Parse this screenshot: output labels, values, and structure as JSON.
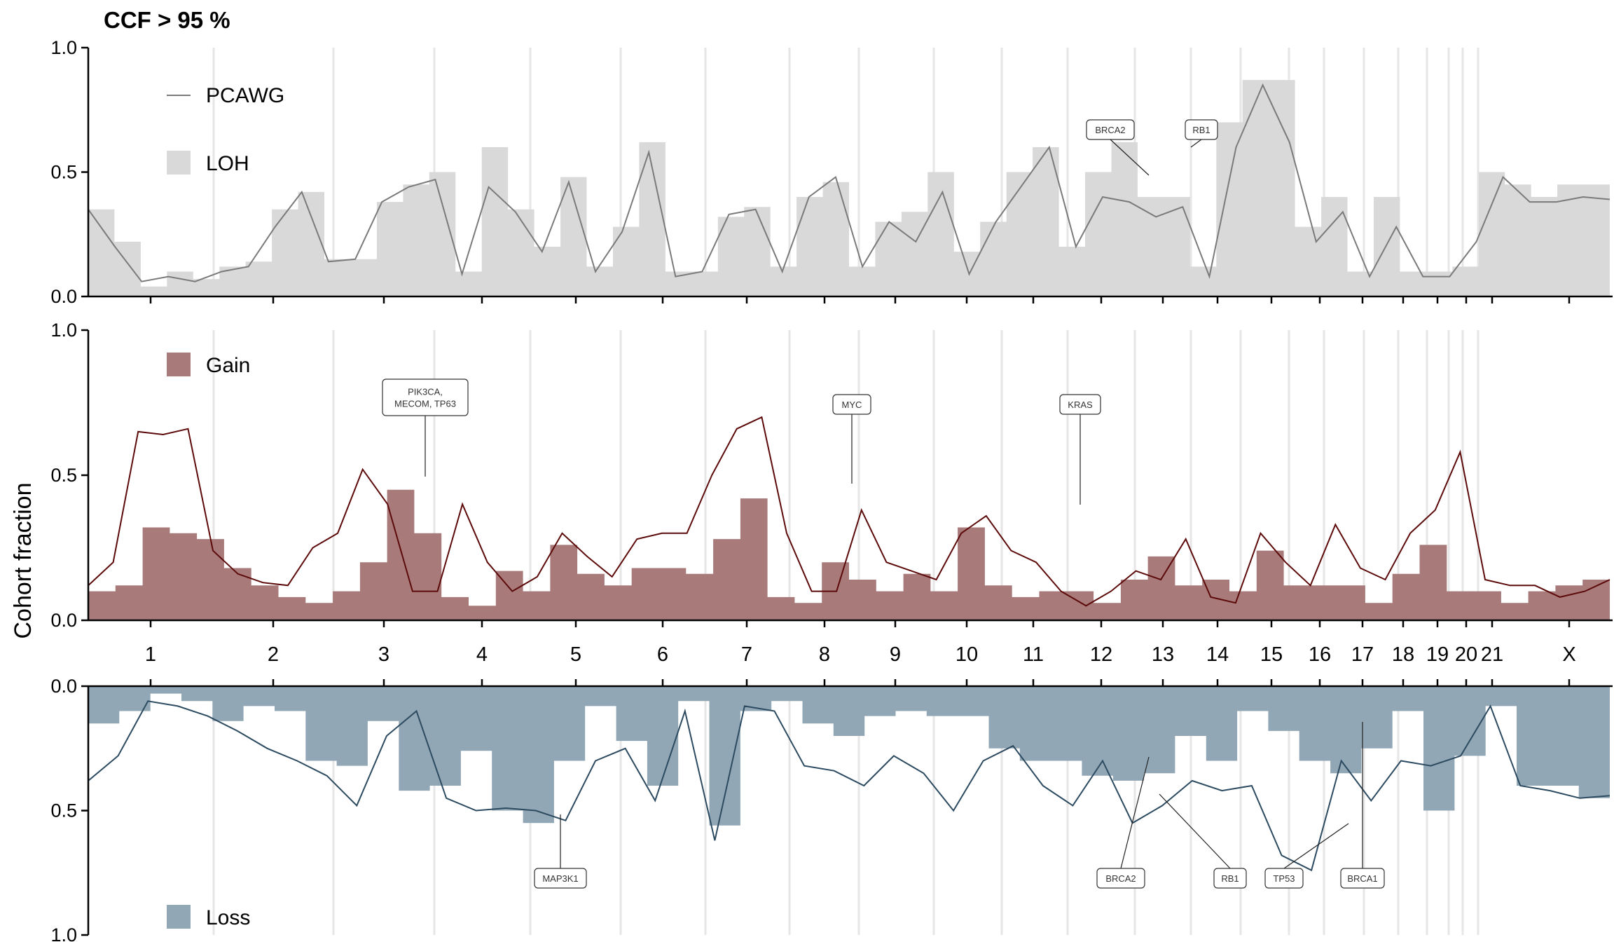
{
  "title": "CCF > 95 %",
  "ylabel": "Cohort fraction",
  "colors": {
    "loh": "#d9d9d9",
    "pcawg": "#7a7a7a",
    "gain_fill": "#a87a7a",
    "gain_line": "#5c0a0a",
    "loss_fill": "#91a7b5",
    "loss_line": "#2c4a60",
    "chrom_line": "#e6e6e6"
  },
  "legend": {
    "pcawg": "PCAWG",
    "loh": "LOH",
    "gain": "Gain",
    "loss": "Loss"
  },
  "chart_data": [
    {
      "panel": "top",
      "type": "area",
      "ylim": [
        0,
        1
      ],
      "yticks": [
        "0.0",
        "0.5",
        "1.0"
      ],
      "series": [
        {
          "name": "LOH",
          "kind": "filled-steps",
          "values": [
            0.35,
            0.22,
            0.04,
            0.1,
            0.07,
            0.12,
            0.14,
            0.35,
            0.42,
            0.15,
            0.15,
            0.38,
            0.45,
            0.5,
            0.1,
            0.6,
            0.35,
            0.2,
            0.48,
            0.12,
            0.28,
            0.62,
            0.1,
            0.1,
            0.32,
            0.36,
            0.12,
            0.4,
            0.46,
            0.12,
            0.3,
            0.34,
            0.5,
            0.18,
            0.3,
            0.5,
            0.6,
            0.2,
            0.5,
            0.62,
            0.4,
            0.4,
            0.12,
            0.7,
            0.87,
            0.87,
            0.28,
            0.4,
            0.1,
            0.4,
            0.1,
            0.1,
            0.12,
            0.5,
            0.45,
            0.4,
            0.45,
            0.45
          ]
        },
        {
          "name": "PCAWG",
          "kind": "line",
          "values": [
            0.35,
            0.2,
            0.06,
            0.08,
            0.06,
            0.1,
            0.12,
            0.28,
            0.42,
            0.14,
            0.15,
            0.38,
            0.44,
            0.47,
            0.09,
            0.44,
            0.34,
            0.18,
            0.46,
            0.1,
            0.26,
            0.58,
            0.08,
            0.1,
            0.33,
            0.35,
            0.1,
            0.4,
            0.48,
            0.12,
            0.3,
            0.22,
            0.42,
            0.09,
            0.3,
            0.45,
            0.6,
            0.2,
            0.4,
            0.38,
            0.32,
            0.36,
            0.08,
            0.6,
            0.85,
            0.62,
            0.22,
            0.34,
            0.08,
            0.28,
            0.08,
            0.08,
            0.22,
            0.48,
            0.38,
            0.38,
            0.4,
            0.39
          ]
        }
      ]
    },
    {
      "panel": "middle",
      "type": "area",
      "ylim": [
        0,
        1
      ],
      "yticks": [
        "0.0",
        "0.5",
        "1.0"
      ],
      "series": [
        {
          "name": "Gain",
          "kind": "filled-steps",
          "values": [
            0.1,
            0.12,
            0.32,
            0.3,
            0.28,
            0.18,
            0.12,
            0.08,
            0.06,
            0.1,
            0.2,
            0.45,
            0.3,
            0.08,
            0.05,
            0.17,
            0.1,
            0.26,
            0.16,
            0.12,
            0.18,
            0.18,
            0.16,
            0.28,
            0.42,
            0.08,
            0.06,
            0.2,
            0.14,
            0.1,
            0.16,
            0.1,
            0.32,
            0.12,
            0.08,
            0.1,
            0.1,
            0.06,
            0.14,
            0.22,
            0.12,
            0.14,
            0.1,
            0.24,
            0.12,
            0.12,
            0.12,
            0.06,
            0.16,
            0.26,
            0.1,
            0.1,
            0.06,
            0.1,
            0.12,
            0.14
          ]
        },
        {
          "name": "PCAWG",
          "kind": "line",
          "values": [
            0.12,
            0.2,
            0.65,
            0.64,
            0.66,
            0.24,
            0.16,
            0.13,
            0.12,
            0.25,
            0.3,
            0.52,
            0.4,
            0.1,
            0.1,
            0.4,
            0.2,
            0.1,
            0.15,
            0.3,
            0.22,
            0.15,
            0.28,
            0.3,
            0.3,
            0.5,
            0.66,
            0.7,
            0.3,
            0.1,
            0.1,
            0.38,
            0.2,
            0.17,
            0.14,
            0.3,
            0.36,
            0.24,
            0.2,
            0.1,
            0.05,
            0.1,
            0.17,
            0.14,
            0.28,
            0.08,
            0.06,
            0.3,
            0.2,
            0.12,
            0.33,
            0.18,
            0.14,
            0.3,
            0.38,
            0.58,
            0.14,
            0.12,
            0.12,
            0.08,
            0.1,
            0.14
          ]
        }
      ]
    },
    {
      "panel": "bottom",
      "type": "area",
      "ylim": [
        0,
        1
      ],
      "yticks": [
        "0.0",
        "0.5",
        "1.0"
      ],
      "series": [
        {
          "name": "Loss",
          "kind": "filled-steps",
          "values": [
            0.15,
            0.1,
            0.03,
            0.06,
            0.14,
            0.08,
            0.1,
            0.3,
            0.32,
            0.14,
            0.42,
            0.4,
            0.26,
            0.5,
            0.55,
            0.3,
            0.08,
            0.22,
            0.4,
            0.06,
            0.56,
            0.1,
            0.06,
            0.15,
            0.2,
            0.12,
            0.1,
            0.12,
            0.12,
            0.25,
            0.3,
            0.3,
            0.36,
            0.38,
            0.35,
            0.2,
            0.3,
            0.1,
            0.18,
            0.3,
            0.35,
            0.25,
            0.1,
            0.5,
            0.28,
            0.08,
            0.4,
            0.4,
            0.45
          ]
        },
        {
          "name": "PCAWG",
          "kind": "line",
          "values": [
            0.38,
            0.28,
            0.06,
            0.08,
            0.12,
            0.18,
            0.25,
            0.3,
            0.36,
            0.48,
            0.2,
            0.1,
            0.45,
            0.5,
            0.49,
            0.5,
            0.54,
            0.3,
            0.25,
            0.46,
            0.1,
            0.62,
            0.08,
            0.1,
            0.32,
            0.34,
            0.4,
            0.28,
            0.35,
            0.5,
            0.3,
            0.24,
            0.4,
            0.48,
            0.3,
            0.55,
            0.48,
            0.38,
            0.42,
            0.4,
            0.68,
            0.74,
            0.3,
            0.46,
            0.3,
            0.32,
            0.28,
            0.08,
            0.4,
            0.42,
            0.45,
            0.44
          ]
        }
      ]
    }
  ],
  "chromosomes": [
    "1",
    "2",
    "3",
    "4",
    "5",
    "6",
    "7",
    "8",
    "9",
    "10",
    "11",
    "12",
    "13",
    "14",
    "15",
    "16",
    "17",
    "18",
    "19",
    "20",
    "21",
    "X"
  ],
  "genes": {
    "top": [
      {
        "label": "BRCA2"
      },
      {
        "label": "RB1"
      }
    ],
    "middle": [
      {
        "label": "PIK3CA,\nMECOM, TP63"
      },
      {
        "label": "MYC"
      },
      {
        "label": "KRAS"
      }
    ],
    "bottom": [
      {
        "label": "MAP3K1"
      },
      {
        "label": "BRCA2"
      },
      {
        "label": "RB1"
      },
      {
        "label": "TP53"
      },
      {
        "label": "BRCA1"
      }
    ]
  }
}
